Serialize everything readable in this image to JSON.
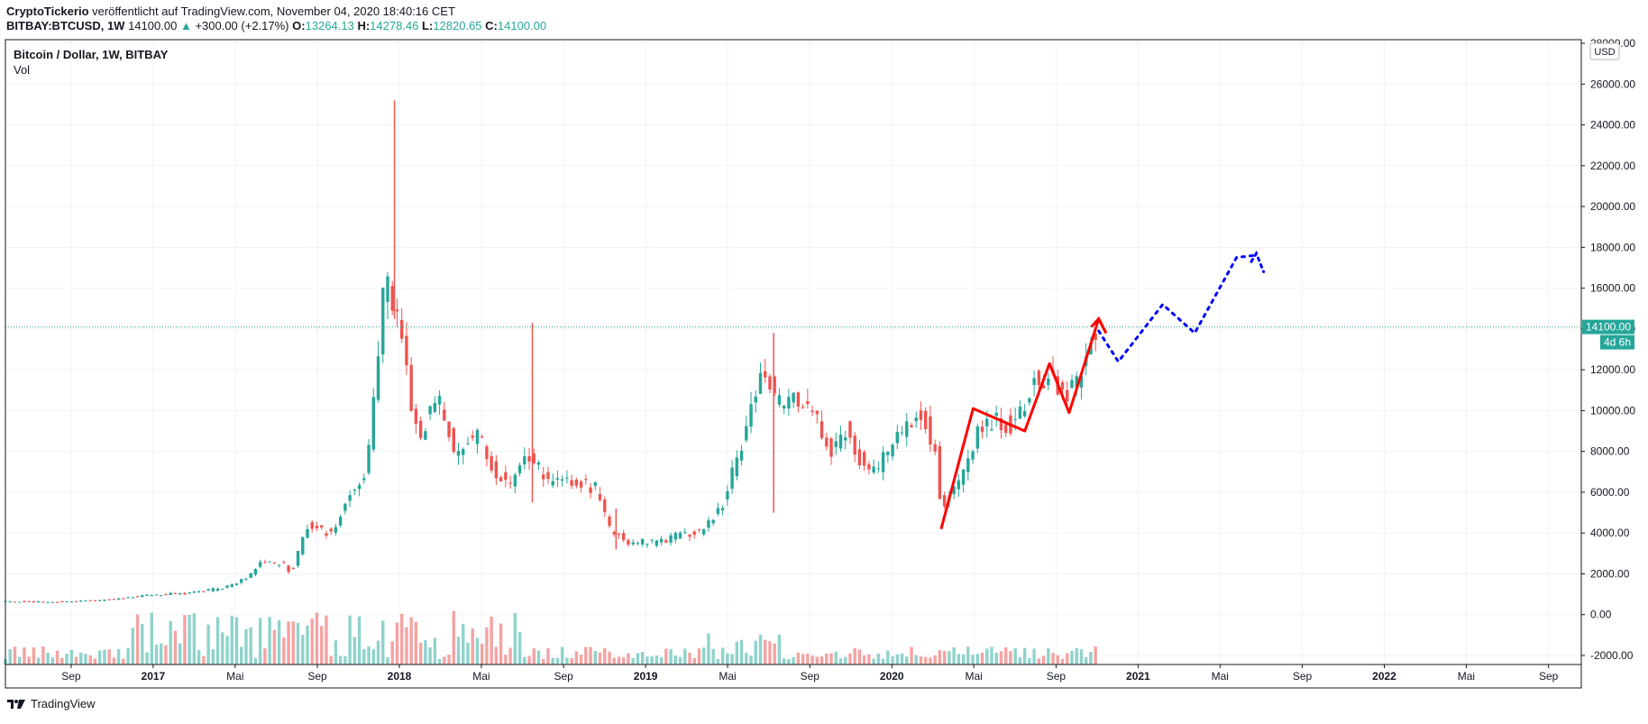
{
  "publish_info": {
    "author": "CryptoTickerio",
    "rest": " veröffentlicht auf TradingView.com, November 04, 2020 18:40:16 CET"
  },
  "ohlc_line": {
    "symbol": "BITBAY:BTCUSD, 1W",
    "close_value": "14100.00",
    "up_arrow": "▲",
    "change": "+300.00 (+2.17%)",
    "o_label": "O:",
    "o_value": "13264.13",
    "h_label": "H:",
    "h_value": "14278.46",
    "l_label": "L:",
    "l_value": "12820.65",
    "c_label": "C:",
    "c_value": "14100.00"
  },
  "legend": {
    "title": "Bitcoin / Dollar, 1W, BITBAY",
    "vol_label": "Vol"
  },
  "footer": {
    "brand": "TradingView"
  },
  "colors": {
    "up": "#26a69a",
    "down": "#ef5350",
    "vol_up": "#8fd3cb",
    "vol_down": "#f4a3a2",
    "drawing_red": "#ff0000",
    "drawing_blue": "#0000ff",
    "grid": "#f0f3fa",
    "axis_text": "#131722"
  },
  "chart_data": {
    "type": "candlestick",
    "title": "Bitcoin / Dollar, 1W, BITBAY",
    "currency_label": "USD",
    "y_ticks": [
      "28000.00",
      "26000.00",
      "24000.00",
      "22000.00",
      "20000.00",
      "18000.00",
      "16000.00",
      "14000.00",
      "12000.00",
      "10000.00",
      "8000.00",
      "6000.00",
      "4000.00",
      "2000.00",
      "0.00",
      "-2000.00"
    ],
    "ylim": [
      -2000,
      28000
    ],
    "current_price_label": "14100.00",
    "countdown_label": "4d 6h",
    "x_ticks": [
      {
        "label": "Sep",
        "t": 2016.667,
        "bold": false
      },
      {
        "label": "2017",
        "t": 2017.0,
        "bold": true
      },
      {
        "label": "Mai",
        "t": 2017.333,
        "bold": false
      },
      {
        "label": "Sep",
        "t": 2017.667,
        "bold": false
      },
      {
        "label": "2018",
        "t": 2018.0,
        "bold": true
      },
      {
        "label": "Mai",
        "t": 2018.333,
        "bold": false
      },
      {
        "label": "Sep",
        "t": 2018.667,
        "bold": false
      },
      {
        "label": "2019",
        "t": 2019.0,
        "bold": true
      },
      {
        "label": "Mai",
        "t": 2019.333,
        "bold": false
      },
      {
        "label": "Sep",
        "t": 2019.667,
        "bold": false
      },
      {
        "label": "2020",
        "t": 2020.0,
        "bold": true
      },
      {
        "label": "Mai",
        "t": 2020.333,
        "bold": false
      },
      {
        "label": "Sep",
        "t": 2020.667,
        "bold": false
      },
      {
        "label": "2021",
        "t": 2021.0,
        "bold": true
      },
      {
        "label": "Mai",
        "t": 2021.333,
        "bold": false
      },
      {
        "label": "Sep",
        "t": 2021.667,
        "bold": false
      },
      {
        "label": "2022",
        "t": 2022.0,
        "bold": true
      },
      {
        "label": "Mai",
        "t": 2022.333,
        "bold": false
      },
      {
        "label": "Sep",
        "t": 2022.667,
        "bold": false
      }
    ],
    "price_path": [
      [
        2016.4,
        650
      ],
      [
        2016.6,
        610
      ],
      [
        2016.85,
        740
      ],
      [
        2017.0,
        960
      ],
      [
        2017.15,
        1050
      ],
      [
        2017.3,
        1300
      ],
      [
        2017.4,
        1800
      ],
      [
        2017.45,
        2600
      ],
      [
        2017.55,
        2500
      ],
      [
        2017.58,
        2000
      ],
      [
        2017.65,
        4500
      ],
      [
        2017.72,
        4000
      ],
      [
        2017.76,
        4300
      ],
      [
        2017.82,
        6000
      ],
      [
        2017.88,
        7000
      ],
      [
        2017.92,
        11000
      ],
      [
        2017.96,
        17000
      ],
      [
        2018.0,
        14500
      ],
      [
        2018.03,
        13500
      ],
      [
        2018.06,
        10500
      ],
      [
        2018.1,
        8500
      ],
      [
        2018.17,
        11000
      ],
      [
        2018.25,
        7500
      ],
      [
        2018.33,
        9000
      ],
      [
        2018.4,
        7000
      ],
      [
        2018.46,
        6400
      ],
      [
        2018.55,
        7800
      ],
      [
        2018.62,
        6500
      ],
      [
        2018.75,
        6400
      ],
      [
        2018.82,
        6200
      ],
      [
        2018.87,
        4200
      ],
      [
        2018.95,
        3600
      ],
      [
        2019.05,
        3500
      ],
      [
        2019.15,
        3900
      ],
      [
        2019.25,
        4100
      ],
      [
        2019.33,
        5400
      ],
      [
        2019.4,
        8000
      ],
      [
        2019.45,
        10500
      ],
      [
        2019.5,
        12000
      ],
      [
        2019.55,
        10200
      ],
      [
        2019.62,
        10500
      ],
      [
        2019.7,
        9800
      ],
      [
        2019.77,
        8000
      ],
      [
        2019.84,
        9200
      ],
      [
        2019.9,
        7200
      ],
      [
        2019.96,
        7200
      ],
      [
        2020.05,
        8800
      ],
      [
        2020.12,
        10000
      ],
      [
        2020.15,
        9500
      ],
      [
        2020.2,
        8000
      ],
      [
        2020.22,
        5000
      ],
      [
        2020.3,
        6800
      ],
      [
        2020.36,
        8800
      ],
      [
        2020.44,
        9500
      ],
      [
        2020.52,
        9200
      ],
      [
        2020.6,
        11500
      ],
      [
        2020.65,
        11700
      ],
      [
        2020.72,
        10500
      ],
      [
        2020.78,
        11500
      ],
      [
        2020.84,
        13800
      ]
    ],
    "spikes": [
      {
        "t": 2017.98,
        "high": 25200,
        "low": 14500
      },
      {
        "t": 2018.54,
        "high": 14300,
        "low": 5500
      },
      {
        "t": 2019.52,
        "high": 13800,
        "low": 5000
      },
      {
        "t": 2018.88,
        "high": 5200,
        "low": 3200
      }
    ],
    "red_zigzag": [
      [
        2020.2,
        4200
      ],
      [
        2020.33,
        10100
      ],
      [
        2020.54,
        9000
      ],
      [
        2020.64,
        12300
      ],
      [
        2020.72,
        9900
      ],
      [
        2020.84,
        14500
      ],
      [
        2020.87,
        13800
      ]
    ],
    "red_arrowhead": [
      [
        2020.81,
        14100
      ],
      [
        2020.84,
        14500
      ],
      [
        2020.87,
        13800
      ]
    ],
    "blue_dotted_projection": [
      [
        2020.84,
        13900
      ],
      [
        2020.92,
        12400
      ],
      [
        2021.1,
        15200
      ],
      [
        2021.23,
        13800
      ],
      [
        2021.4,
        17500
      ],
      [
        2021.47,
        17600
      ]
    ],
    "blue_arrowhead": [
      [
        2021.46,
        17300
      ],
      [
        2021.48,
        17700
      ],
      [
        2021.51,
        16800
      ]
    ]
  }
}
